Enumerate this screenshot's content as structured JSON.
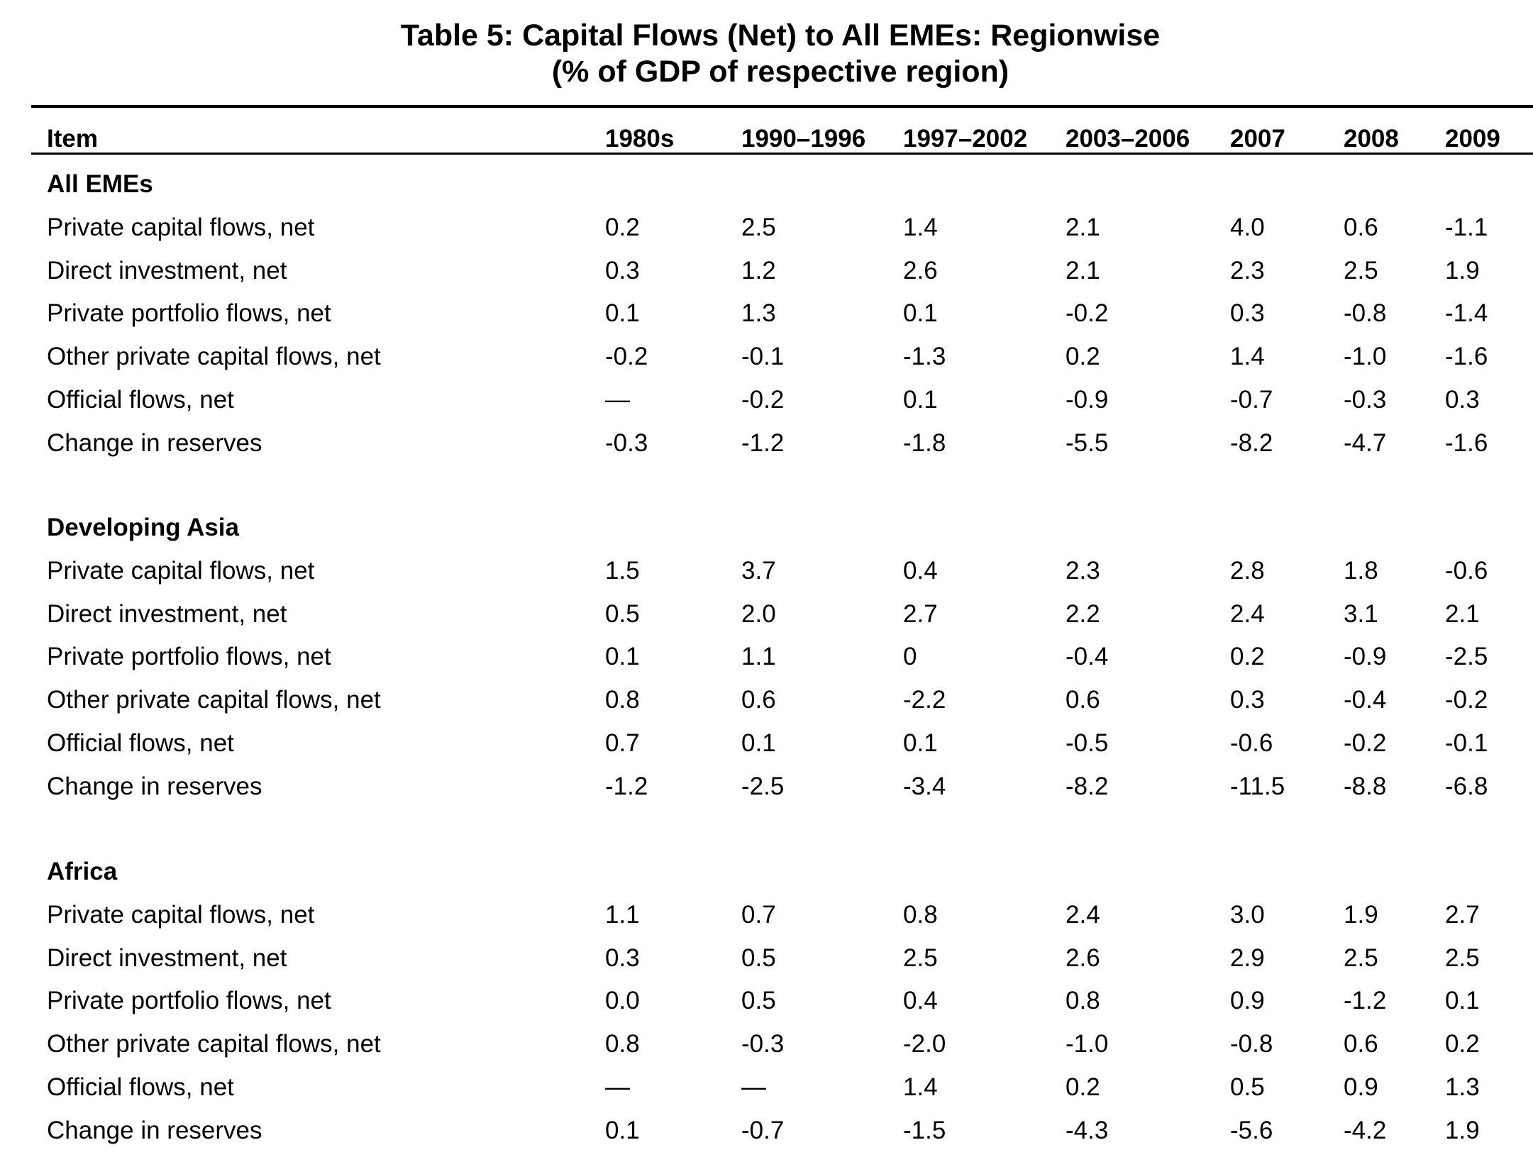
{
  "title": "Table 5: Capital Flows (Net) to All EMEs: Regionwise",
  "subtitle": "(% of GDP of respective region)",
  "columns": [
    "Item",
    "1980s",
    "1990–1996",
    "1997–2002",
    "2003–2006",
    "2007",
    "2008",
    "2009"
  ],
  "sections": [
    {
      "name": "All EMEs",
      "rows": [
        {
          "label": "Private capital flows, net",
          "values": [
            "0.2",
            "2.5",
            "1.4",
            "2.1",
            "4.0",
            "0.6",
            "-1.1"
          ]
        },
        {
          "label": "Direct investment, net",
          "values": [
            "0.3",
            "1.2",
            "2.6",
            "2.1",
            "2.3",
            "2.5",
            "1.9"
          ]
        },
        {
          "label": "Private portfolio flows, net",
          "values": [
            "0.1",
            "1.3",
            "0.1",
            "-0.2",
            "0.3",
            "-0.8",
            "-1.4"
          ]
        },
        {
          "label": "Other private capital flows, net",
          "values": [
            "-0.2",
            "-0.1",
            "-1.3",
            "0.2",
            "1.4",
            "-1.0",
            "-1.6"
          ]
        },
        {
          "label": "Official flows, net",
          "values": [
            "—",
            "-0.2",
            "0.1",
            "-0.9",
            "-0.7",
            "-0.3",
            "0.3"
          ]
        },
        {
          "label": "Change in reserves",
          "values": [
            "-0.3",
            "-1.2",
            "-1.8",
            "-5.5",
            "-8.2",
            "-4.7",
            "-1.6"
          ]
        }
      ]
    },
    {
      "name": "Developing Asia",
      "rows": [
        {
          "label": "Private capital flows, net",
          "values": [
            "1.5",
            "3.7",
            "0.4",
            "2.3",
            "2.8",
            "1.8",
            "-0.6"
          ]
        },
        {
          "label": "Direct investment, net",
          "values": [
            "0.5",
            "2.0",
            "2.7",
            "2.2",
            "2.4",
            "3.1",
            "2.1"
          ]
        },
        {
          "label": "Private portfolio flows, net",
          "values": [
            "0.1",
            "1.1",
            "0",
            "-0.4",
            "0.2",
            "-0.9",
            "-2.5"
          ]
        },
        {
          "label": "Other private capital flows, net",
          "values": [
            "0.8",
            "0.6",
            "-2.2",
            "0.6",
            "0.3",
            "-0.4",
            "-0.2"
          ]
        },
        {
          "label": "Official flows, net",
          "values": [
            "0.7",
            "0.1",
            "0.1",
            "-0.5",
            "-0.6",
            "-0.2",
            "-0.1"
          ]
        },
        {
          "label": "Change in reserves",
          "values": [
            "-1.2",
            "-2.5",
            "-3.4",
            "-8.2",
            "-11.5",
            "-8.8",
            "-6.8"
          ]
        }
      ]
    },
    {
      "name": "Africa",
      "rows": [
        {
          "label": "Private capital flows, net",
          "values": [
            "1.1",
            "0.7",
            "0.8",
            "2.4",
            "3.0",
            "1.9",
            "2.7"
          ]
        },
        {
          "label": "Direct investment, net",
          "values": [
            "0.3",
            "0.5",
            "2.5",
            "2.6",
            "2.9",
            "2.5",
            "2.5"
          ]
        },
        {
          "label": "Private portfolio flows, net",
          "values": [
            "0.0",
            "0.5",
            "0.4",
            "0.8",
            "0.9",
            "-1.2",
            "0.1"
          ]
        },
        {
          "label": "Other private capital flows, net",
          "values": [
            "0.8",
            "-0.3",
            "-2.0",
            "-1.0",
            "-0.8",
            "0.6",
            "0.2"
          ]
        },
        {
          "label": "Official flows, net",
          "values": [
            "—",
            "—",
            "1.4",
            "0.2",
            "0.5",
            "0.9",
            "1.3"
          ]
        },
        {
          "label": "Change in reserves",
          "values": [
            "0.1",
            "-0.7",
            "-1.5",
            "-4.3",
            "-5.6",
            "-4.2",
            "1.9"
          ]
        }
      ]
    }
  ]
}
